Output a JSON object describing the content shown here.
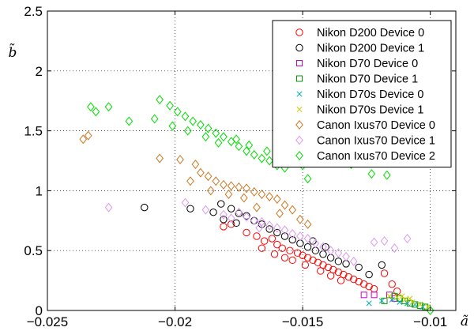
{
  "chart_data": {
    "type": "scatter",
    "xlabel": "ã",
    "ylabel": "b̃",
    "xlim": [
      -0.025,
      -0.009
    ],
    "ylim": [
      0,
      2.5
    ],
    "xticks": [
      -0.025,
      -0.02,
      -0.015,
      -0.01
    ],
    "xtick_labels": [
      "−0.025",
      "−0.02",
      "−0.015",
      "−0.01"
    ],
    "yticks": [
      0,
      0.5,
      1,
      1.5,
      2,
      2.5
    ],
    "ytick_labels": [
      "0",
      "0.5",
      "1",
      "1.5",
      "2",
      "2.5"
    ],
    "grid": true,
    "legend_position": "top-right",
    "series": [
      {
        "name": "Nikon D200 Device 0",
        "color": "#ff0000",
        "marker": "circle",
        "points": [
          [
            -0.0181,
            0.7
          ],
          [
            -0.0178,
            0.72
          ],
          [
            -0.0172,
            0.65
          ],
          [
            -0.0168,
            0.62
          ],
          [
            -0.0165,
            0.58
          ],
          [
            -0.0162,
            0.6
          ],
          [
            -0.016,
            0.55
          ],
          [
            -0.0158,
            0.52
          ],
          [
            -0.0155,
            0.5
          ],
          [
            -0.0152,
            0.48
          ],
          [
            -0.015,
            0.46
          ],
          [
            -0.0148,
            0.44
          ],
          [
            -0.0146,
            0.42
          ],
          [
            -0.0144,
            0.4
          ],
          [
            -0.0142,
            0.38
          ],
          [
            -0.014,
            0.36
          ],
          [
            -0.0138,
            0.34
          ],
          [
            -0.0136,
            0.32
          ],
          [
            -0.0134,
            0.3
          ],
          [
            -0.0132,
            0.28
          ],
          [
            -0.013,
            0.26
          ],
          [
            -0.0128,
            0.24
          ],
          [
            -0.0126,
            0.22
          ],
          [
            -0.0124,
            0.2
          ],
          [
            -0.0122,
            0.18
          ],
          [
            -0.0118,
            0.31
          ],
          [
            -0.0115,
            0.22
          ],
          [
            -0.0113,
            0.16
          ],
          [
            -0.0154,
            0.42
          ],
          [
            -0.0149,
            0.38
          ],
          [
            -0.0143,
            0.33
          ],
          [
            -0.0139,
            0.29
          ],
          [
            -0.0161,
            0.47
          ],
          [
            -0.0157,
            0.44
          ],
          [
            -0.0166,
            0.52
          ],
          [
            -0.0135,
            0.25
          ]
        ]
      },
      {
        "name": "Nikon D200 Device 1",
        "color": "#000000",
        "marker": "circle",
        "points": [
          [
            -0.0212,
            0.86
          ],
          [
            -0.0194,
            0.85
          ],
          [
            -0.0182,
            0.89
          ],
          [
            -0.0178,
            0.85
          ],
          [
            -0.0175,
            0.81
          ],
          [
            -0.0172,
            0.79
          ],
          [
            -0.0169,
            0.75
          ],
          [
            -0.0166,
            0.72
          ],
          [
            -0.0163,
            0.68
          ],
          [
            -0.016,
            0.65
          ],
          [
            -0.0157,
            0.62
          ],
          [
            -0.0154,
            0.59
          ],
          [
            -0.0151,
            0.56
          ],
          [
            -0.0148,
            0.53
          ],
          [
            -0.0145,
            0.5
          ],
          [
            -0.0142,
            0.47
          ],
          [
            -0.0139,
            0.44
          ],
          [
            -0.0136,
            0.41
          ],
          [
            -0.0133,
            0.39
          ],
          [
            -0.0128,
            0.36
          ],
          [
            -0.0124,
            0.3
          ],
          [
            -0.0119,
            0.38
          ],
          [
            -0.0146,
            0.58
          ],
          [
            -0.0141,
            0.53
          ],
          [
            -0.0185,
            0.82
          ],
          [
            -0.0181,
            0.76
          ],
          [
            -0.0176,
            0.73
          ]
        ]
      },
      {
        "name": "Nikon D70 Device 0",
        "color": "#cc00cc",
        "marker": "square",
        "points": [
          [
            -0.0126,
            0.13
          ],
          [
            -0.0122,
            0.13
          ],
          [
            -0.0116,
            0.13
          ],
          [
            -0.0114,
            0.1
          ]
        ]
      },
      {
        "name": "Nikon D70 Device 1",
        "color": "#009900",
        "marker": "square",
        "points": [
          [
            -0.0114,
            0.12
          ],
          [
            -0.0112,
            0.1
          ],
          [
            -0.011,
            0.08
          ],
          [
            -0.0108,
            0.06
          ],
          [
            -0.0106,
            0.05
          ],
          [
            -0.0104,
            0.04
          ],
          [
            -0.0102,
            0.03
          ],
          [
            -0.0118,
            0.08
          ]
        ]
      },
      {
        "name": "Nikon D70s Device 0",
        "color": "#00aaaa",
        "marker": "x",
        "points": [
          [
            -0.0119,
            0.08
          ],
          [
            -0.0115,
            0.09
          ],
          [
            -0.0112,
            0.07
          ],
          [
            -0.0109,
            0.06
          ],
          [
            -0.0106,
            0.05
          ],
          [
            -0.0103,
            0.03
          ],
          [
            -0.0124,
            0.06
          ]
        ]
      },
      {
        "name": "Nikon D70s Device 1",
        "color": "#cccc00",
        "marker": "x",
        "points": [
          [
            -0.0116,
            0.12
          ],
          [
            -0.0113,
            0.11
          ],
          [
            -0.011,
            0.09
          ],
          [
            -0.0107,
            0.07
          ],
          [
            -0.0104,
            0.05
          ],
          [
            -0.0101,
            0.03
          ],
          [
            -0.0111,
            0.12
          ],
          [
            -0.0108,
            0.1
          ]
        ]
      },
      {
        "name": "Canon Ixus70 Device 0",
        "color": "#cc7722",
        "marker": "diamond",
        "points": [
          [
            -0.0236,
            1.43
          ],
          [
            -0.0234,
            1.46
          ],
          [
            -0.0206,
            1.27
          ],
          [
            -0.0198,
            1.26
          ],
          [
            -0.0192,
            1.22
          ],
          [
            -0.019,
            1.15
          ],
          [
            -0.0187,
            1.12
          ],
          [
            -0.0184,
            1.08
          ],
          [
            -0.0181,
            1.05
          ],
          [
            -0.0178,
            1.04
          ],
          [
            -0.0175,
            1.03
          ],
          [
            -0.0172,
            1.02
          ],
          [
            -0.0169,
            0.99
          ],
          [
            -0.0166,
            0.97
          ],
          [
            -0.0163,
            0.95
          ],
          [
            -0.016,
            0.93
          ],
          [
            -0.0157,
            0.88
          ],
          [
            -0.0154,
            0.84
          ],
          [
            -0.0151,
            0.76
          ],
          [
            -0.0148,
            0.72
          ],
          [
            -0.0168,
            0.86
          ],
          [
            -0.0159,
            0.81
          ],
          [
            -0.0186,
            1.0
          ],
          [
            -0.0179,
            0.97
          ],
          [
            -0.0173,
            0.94
          ],
          [
            -0.0194,
            1.08
          ]
        ]
      },
      {
        "name": "Canon Ixus70 Device 1",
        "color": "#dd99ee",
        "marker": "diamond",
        "points": [
          [
            -0.0226,
            0.86
          ],
          [
            -0.0196,
            0.9
          ],
          [
            -0.0188,
            0.84
          ],
          [
            -0.0181,
            0.8
          ],
          [
            -0.0175,
            0.82
          ],
          [
            -0.0172,
            0.78
          ],
          [
            -0.0169,
            0.75
          ],
          [
            -0.0166,
            0.74
          ],
          [
            -0.0163,
            0.71
          ],
          [
            -0.016,
            0.69
          ],
          [
            -0.0157,
            0.67
          ],
          [
            -0.0154,
            0.64
          ],
          [
            -0.0151,
            0.62
          ],
          [
            -0.0148,
            0.6
          ],
          [
            -0.0145,
            0.56
          ],
          [
            -0.0142,
            0.53
          ],
          [
            -0.0139,
            0.5
          ],
          [
            -0.0136,
            0.48
          ],
          [
            -0.0133,
            0.45
          ],
          [
            -0.013,
            0.41
          ],
          [
            -0.0122,
            0.57
          ],
          [
            -0.0118,
            0.58
          ],
          [
            -0.0114,
            0.52
          ],
          [
            -0.0109,
            0.6
          ],
          [
            -0.0178,
            0.77
          ],
          [
            -0.0167,
            0.69
          ]
        ]
      },
      {
        "name": "Canon Ixus70 Device 2",
        "color": "#00dd00",
        "marker": "diamond",
        "points": [
          [
            -0.0233,
            1.7
          ],
          [
            -0.0231,
            1.66
          ],
          [
            -0.0226,
            1.7
          ],
          [
            -0.0218,
            1.58
          ],
          [
            -0.0206,
            1.76
          ],
          [
            -0.0202,
            1.71
          ],
          [
            -0.0199,
            1.66
          ],
          [
            -0.0196,
            1.62
          ],
          [
            -0.0193,
            1.58
          ],
          [
            -0.019,
            1.55
          ],
          [
            -0.0187,
            1.52
          ],
          [
            -0.0184,
            1.48
          ],
          [
            -0.0181,
            1.45
          ],
          [
            -0.0178,
            1.41
          ],
          [
            -0.0175,
            1.37
          ],
          [
            -0.0172,
            1.33
          ],
          [
            -0.0169,
            1.3
          ],
          [
            -0.0166,
            1.27
          ],
          [
            -0.0163,
            1.25
          ],
          [
            -0.016,
            1.21
          ],
          [
            -0.0157,
            1.19
          ],
          [
            -0.0153,
            1.24
          ],
          [
            -0.015,
            1.21
          ],
          [
            -0.0148,
            1.1
          ],
          [
            -0.0131,
            1.22
          ],
          [
            -0.0123,
            1.14
          ],
          [
            -0.0117,
            1.13
          ],
          [
            -0.01,
            0.0
          ],
          [
            -0.0208,
            1.6
          ],
          [
            -0.0201,
            1.54
          ],
          [
            -0.0195,
            1.5
          ],
          [
            -0.0188,
            1.45
          ],
          [
            -0.0183,
            1.4
          ],
          [
            -0.0176,
            1.43
          ],
          [
            -0.0171,
            1.38
          ],
          [
            -0.0164,
            1.33
          ]
        ]
      }
    ]
  }
}
